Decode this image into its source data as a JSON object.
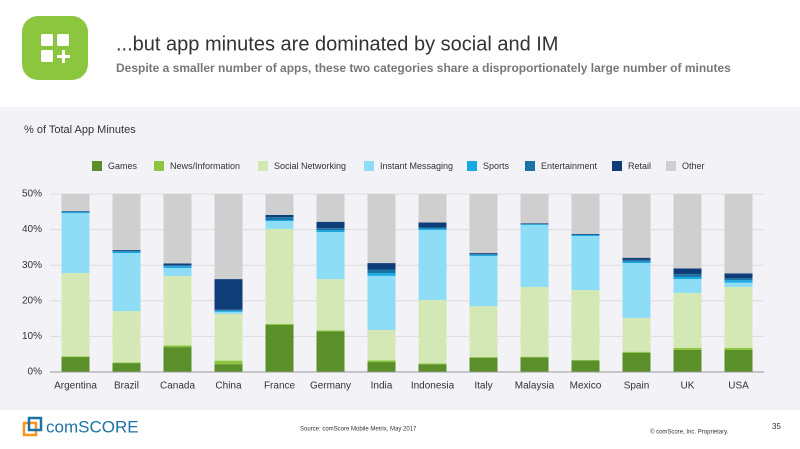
{
  "chart_data": {
    "type": "stacked_bar",
    "title": "...but app minutes are dominated by social and IM",
    "subtitle": "Despite a smaller number of apps, these two categories share a disproportionately large number of minutes",
    "ylabel": "% of Total App Minutes",
    "categories": [
      "Argentina",
      "Brazil",
      "Canada",
      "China",
      "France",
      "Germany",
      "India",
      "Indonesia",
      "Italy",
      "Malaysia",
      "Mexico",
      "Spain",
      "UK",
      "USA"
    ],
    "series": [
      {
        "name": "Games",
        "color": "#5a8f29",
        "values": [
          4.2,
          2.5,
          7.0,
          2.2,
          13.2,
          11.4,
          2.8,
          2.2,
          4.0,
          4.1,
          3.2,
          5.4,
          6.2,
          6.2
        ]
      },
      {
        "name": "News/Information",
        "color": "#8cc63f",
        "values": [
          0.2,
          0.2,
          0.5,
          1.0,
          0.3,
          0.3,
          0.5,
          0.2,
          0.2,
          0.2,
          0.2,
          0.3,
          0.6,
          0.6
        ]
      },
      {
        "name": "Social Networking",
        "color": "#d4e8b5",
        "values": [
          23.4,
          14.4,
          19.5,
          13.1,
          26.7,
          14.4,
          8.5,
          17.8,
          14.3,
          19.6,
          19.6,
          9.5,
          15.4,
          17.1
        ]
      },
      {
        "name": "Instant Messaging",
        "color": "#8fdcf7",
        "values": [
          16.8,
          16.3,
          2.2,
          0.6,
          2.2,
          13.2,
          15.2,
          19.7,
          14.1,
          17.4,
          15.2,
          15.4,
          3.9,
          1.2
        ]
      },
      {
        "name": "Sports",
        "color": "#17a9e1",
        "values": [
          0.3,
          0.4,
          0.5,
          0.3,
          0.3,
          0.5,
          0.8,
          0.4,
          0.3,
          0.2,
          0.3,
          0.4,
          0.6,
          0.7
        ]
      },
      {
        "name": "Entertainment",
        "color": "#1b73a5",
        "values": [
          0.2,
          0.3,
          0.3,
          0.3,
          0.8,
          0.6,
          1.0,
          0.3,
          0.2,
          0.1,
          0.1,
          0.5,
          0.8,
          0.6
        ]
      },
      {
        "name": "Retail",
        "color": "#0f3d78",
        "values": [
          0.1,
          0.2,
          0.5,
          8.6,
          0.6,
          1.8,
          1.8,
          1.4,
          0.3,
          0.2,
          0.2,
          0.6,
          1.6,
          1.3
        ]
      },
      {
        "name": "Other",
        "color": "#cfcfcf",
        "values": [
          4.8,
          15.7,
          19.5,
          23.9,
          5.9,
          7.8,
          19.4,
          8.0,
          16.6,
          8.2,
          11.2,
          17.9,
          20.9,
          22.3
        ]
      }
    ],
    "ylim": [
      0,
      50
    ],
    "yticks": [
      {
        "value": 0,
        "label": "0%"
      },
      {
        "value": 10,
        "label": "10%"
      },
      {
        "value": 20,
        "label": "20%"
      },
      {
        "value": 30,
        "label": "30%"
      },
      {
        "value": 40,
        "label": "40%"
      },
      {
        "value": 50,
        "label": "50%"
      }
    ],
    "grid": true
  },
  "footer": {
    "logo": "comSCORE",
    "source": "Source: comScore Mobile Metrix, May 2017",
    "copyright": "© comScore, Inc. Proprietary.",
    "page": "35"
  }
}
